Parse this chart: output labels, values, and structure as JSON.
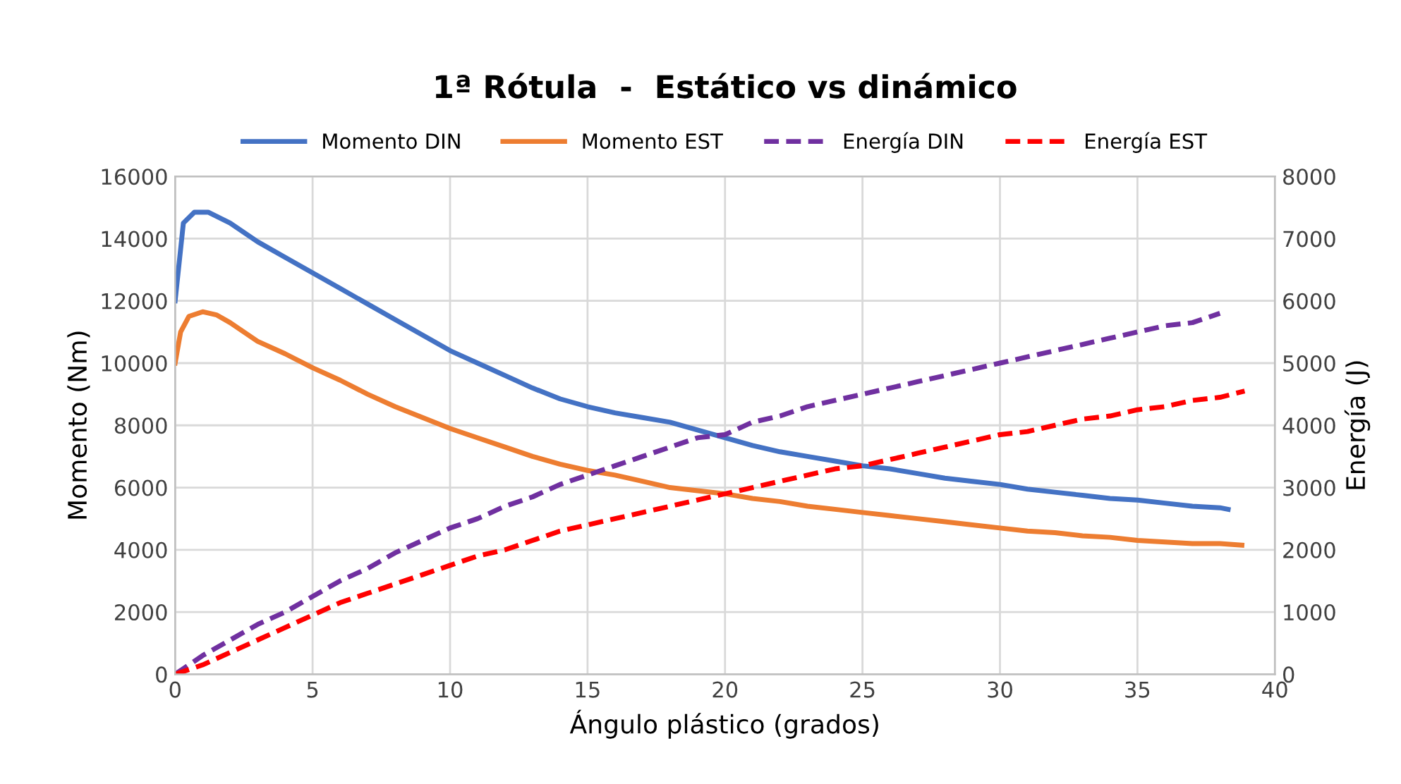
{
  "chart_data": {
    "type": "line",
    "title": "1ª Rótula  -  Estático vs dinámico",
    "xlabel": "Ángulo plástico (grados)",
    "ylabel": "Momento (Nm)",
    "y2label": "Energía (J)",
    "xlim": [
      0,
      40
    ],
    "xticks": [
      0,
      5,
      10,
      15,
      20,
      25,
      30,
      35,
      40
    ],
    "ylim": [
      0,
      16000
    ],
    "yticks": [
      0,
      2000,
      4000,
      6000,
      8000,
      10000,
      12000,
      14000,
      16000
    ],
    "y2lim": [
      0,
      8000
    ],
    "y2ticks": [
      0,
      1000,
      2000,
      3000,
      4000,
      5000,
      6000,
      7000,
      8000
    ],
    "grid": true,
    "legend": "top",
    "marker": "none",
    "series": [
      {
        "name": "Momento DIN",
        "color": "#4472c4",
        "line_style": "solid",
        "x": [
          0,
          0.3,
          0.7,
          1.2,
          2,
          3,
          4,
          5,
          6,
          7,
          8,
          9,
          10,
          11,
          12,
          13,
          14,
          15,
          16,
          17,
          18,
          19,
          20,
          21,
          22,
          23,
          24,
          25,
          26,
          27,
          28,
          29,
          30,
          31,
          32,
          33,
          34,
          35,
          36,
          37,
          38,
          38.3
        ],
        "values": [
          12000,
          14500,
          14850,
          14850,
          14500,
          13900,
          13400,
          12900,
          12400,
          11900,
          11400,
          10900,
          10400,
          10000,
          9600,
          9200,
          8850,
          8600,
          8400,
          8250,
          8100,
          7850,
          7600,
          7350,
          7150,
          7000,
          6850,
          6700,
          6600,
          6450,
          6300,
          6200,
          6100,
          5950,
          5850,
          5750,
          5650,
          5600,
          5500,
          5400,
          5350,
          5300
        ]
      },
      {
        "name": "Momento EST",
        "color": "#ed7d31",
        "line_style": "solid",
        "x": [
          0,
          0.2,
          0.5,
          1,
          1.5,
          2,
          3,
          4,
          5,
          6,
          7,
          8,
          9,
          10,
          11,
          12,
          13,
          14,
          15,
          16,
          17,
          18,
          19,
          20,
          21,
          22,
          23,
          24,
          25,
          26,
          27,
          28,
          29,
          30,
          31,
          32,
          33,
          34,
          35,
          36,
          37,
          38,
          38.8
        ],
        "values": [
          10000,
          11000,
          11500,
          11650,
          11550,
          11300,
          10700,
          10300,
          9850,
          9450,
          9000,
          8600,
          8250,
          7900,
          7600,
          7300,
          7000,
          6750,
          6550,
          6400,
          6200,
          6000,
          5900,
          5800,
          5650,
          5550,
          5400,
          5300,
          5200,
          5100,
          5000,
          4900,
          4800,
          4700,
          4600,
          4550,
          4450,
          4400,
          4300,
          4250,
          4200,
          4200,
          4150
        ]
      },
      {
        "name": "Energía DIN",
        "color": "#7030a0",
        "line_style": "dashed",
        "axis": "y2",
        "x": [
          0,
          1,
          2,
          3,
          4,
          5,
          6,
          7,
          8,
          9,
          10,
          11,
          12,
          13,
          14,
          15,
          16,
          17,
          18,
          19,
          20,
          21,
          22,
          23,
          24,
          25,
          26,
          27,
          28,
          29,
          30,
          31,
          32,
          33,
          34,
          35,
          36,
          37,
          38
        ],
        "values": [
          0,
          300,
          550,
          800,
          1000,
          1250,
          1500,
          1700,
          1950,
          2150,
          2350,
          2500,
          2700,
          2850,
          3050,
          3200,
          3350,
          3500,
          3650,
          3800,
          3850,
          4050,
          4150,
          4300,
          4400,
          4500,
          4600,
          4700,
          4800,
          4900,
          5000,
          5100,
          5200,
          5300,
          5400,
          5500,
          5600,
          5650,
          5800
        ]
      },
      {
        "name": "Energía EST",
        "color": "#ff0000",
        "line_style": "dashed",
        "axis": "y2",
        "x": [
          0,
          1,
          2,
          3,
          4,
          5,
          6,
          7,
          8,
          9,
          10,
          11,
          12,
          13,
          14,
          15,
          16,
          17,
          18,
          19,
          20,
          21,
          22,
          23,
          24,
          25,
          26,
          27,
          28,
          29,
          30,
          31,
          32,
          33,
          34,
          35,
          36,
          37,
          38,
          38.9
        ],
        "values": [
          0,
          150,
          350,
          550,
          750,
          950,
          1150,
          1300,
          1450,
          1600,
          1750,
          1900,
          2000,
          2150,
          2300,
          2400,
          2500,
          2600,
          2700,
          2800,
          2900,
          3000,
          3100,
          3200,
          3300,
          3350,
          3450,
          3550,
          3650,
          3750,
          3850,
          3900,
          4000,
          4100,
          4150,
          4250,
          4300,
          4400,
          4450,
          4550
        ]
      }
    ]
  }
}
